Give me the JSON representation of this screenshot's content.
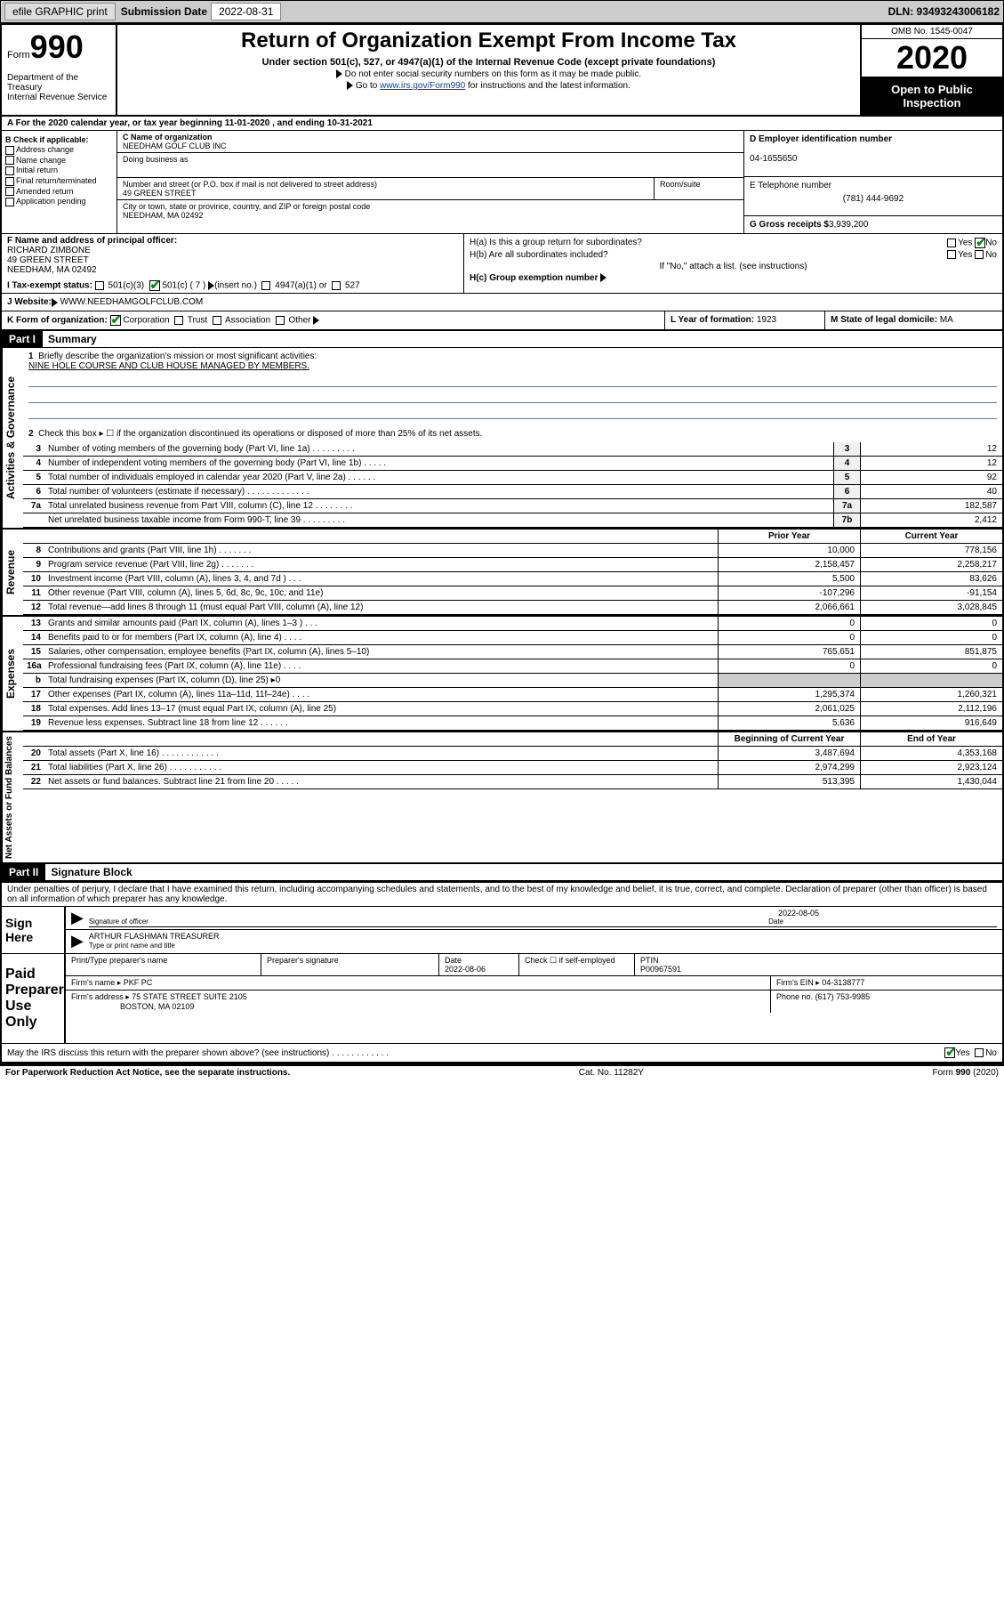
{
  "topbar": {
    "efile": "efile GRAPHIC print",
    "sub_label": "Submission Date",
    "sub_date": "2022-08-31",
    "dln": "DLN: 93493243006182"
  },
  "header": {
    "form_word": "Form",
    "form_num": "990",
    "dept": "Department of the Treasury\nInternal Revenue Service",
    "title": "Return of Organization Exempt From Income Tax",
    "sub": "Under section 501(c), 527, or 4947(a)(1) of the Internal Revenue Code (except private foundations)",
    "line1": "Do not enter social security numbers on this form as it may be made public.",
    "line2_a": "Go to ",
    "line2_link": "www.irs.gov/Form990",
    "line2_b": " for instructions and the latest information.",
    "omb": "OMB No. 1545-0047",
    "year": "2020",
    "inspect": "Open to Public Inspection"
  },
  "row_a": "A  For the 2020 calendar year, or tax year beginning 11-01-2020    , and ending 10-31-2021",
  "col_b": {
    "hdr": "B Check if applicable:",
    "items": [
      "Address change",
      "Name change",
      "Initial return",
      "Final return/terminated",
      "Amended return",
      "Application pending"
    ]
  },
  "col_c": {
    "name_lbl": "C Name of organization",
    "name": "NEEDHAM GOLF CLUB INC",
    "dba_lbl": "Doing business as",
    "addr_lbl": "Number and street (or P.O. box if mail is not delivered to street address)",
    "addr": "49 GREEN STREET",
    "room_lbl": "Room/suite",
    "city_lbl": "City or town, state or province, country, and ZIP or foreign postal code",
    "city": "NEEDHAM, MA  02492"
  },
  "col_d": {
    "ein_lbl": "D Employer identification number",
    "ein": "04-1655650",
    "tel_lbl": "E Telephone number",
    "tel": "(781) 444-9692",
    "gross_lbl": "G Gross receipts $",
    "gross": "3,939,200"
  },
  "row_f": {
    "lbl": "F  Name and address of principal officer:",
    "name": "RICHARD ZIMBONE",
    "addr1": "49 GREEN STREET",
    "addr2": "NEEDHAM, MA  02492"
  },
  "row_h": {
    "a": "H(a)  Is this a group return for subordinates?",
    "b": "H(b)  Are all subordinates included?",
    "note": "If \"No,\" attach a list. (see instructions)",
    "c": "H(c)  Group exemption number",
    "yes": "Yes",
    "no": "No"
  },
  "row_i": {
    "lbl": "I  Tax-exempt status:",
    "o1": "501(c)(3)",
    "o2": "501(c) ( 7 )",
    "o2_note": "(insert no.)",
    "o3": "4947(a)(1) or",
    "o4": "527"
  },
  "row_j": {
    "lbl": "J  Website:",
    "val": "WWW.NEEDHAMGOLFCLUB.COM"
  },
  "row_k": {
    "lbl": "K Form of organization:",
    "o1": "Corporation",
    "o2": "Trust",
    "o3": "Association",
    "o4": "Other"
  },
  "row_l": {
    "lbl": "L Year of formation:",
    "val": "1923"
  },
  "row_m": {
    "lbl": "M State of legal domicile:",
    "val": "MA"
  },
  "part1": {
    "hdr": "Part I",
    "title": "Summary",
    "q1_lbl": "1",
    "q1": "Briefly describe the organization's mission or most significant activities:",
    "q1_val": "NINE HOLE COURSE AND CLUB HOUSE MANAGED BY MEMBERS.",
    "q2_lbl": "2",
    "q2": "Check this box ▸ ☐  if the organization discontinued its operations or disposed of more than 25% of its net assets.",
    "lines_gov": [
      {
        "n": "3",
        "t": "Number of voting members of the governing body (Part VI, line 1a)  .    .    .    .    .    .    .    .    .",
        "b": "3",
        "v": "12"
      },
      {
        "n": "4",
        "t": "Number of independent voting members of the governing body (Part VI, line 1b)  .    .    .    .    .",
        "b": "4",
        "v": "12"
      },
      {
        "n": "5",
        "t": "Total number of individuals employed in calendar year 2020 (Part V, line 2a)  .    .    .    .    .    .",
        "b": "5",
        "v": "92"
      },
      {
        "n": "6",
        "t": "Total number of volunteers (estimate if necessary)  .    .    .    .    .    .    .    .    .    .    .    .    .",
        "b": "6",
        "v": "40"
      },
      {
        "n": "7a",
        "t": "Total unrelated business revenue from Part VIII, column (C), line 12  .    .    .    .    .    .    .    .",
        "b": "7a",
        "v": "182,587"
      },
      {
        "n": "",
        "t": "Net unrelated business taxable income from Form 990-T, line 39  .    .    .    .    .    .    .    .    .",
        "b": "7b",
        "v": "2,412"
      }
    ],
    "hdr_prior": "Prior Year",
    "hdr_current": "Current Year",
    "lines_rev": [
      {
        "n": "8",
        "t": "Contributions and grants (Part VIII, line 1h)  .    .    .    .    .    .    .",
        "p": "10,000",
        "c": "778,156"
      },
      {
        "n": "9",
        "t": "Program service revenue (Part VIII, line 2g)  .    .    .    .    .    .    .",
        "p": "2,158,457",
        "c": "2,258,217"
      },
      {
        "n": "10",
        "t": "Investment income (Part VIII, column (A), lines 3, 4, and 7d )  .    .    .",
        "p": "5,500",
        "c": "83,626"
      },
      {
        "n": "11",
        "t": "Other revenue (Part VIII, column (A), lines 5, 6d, 8c, 9c, 10c, and 11e)",
        "p": "-107,296",
        "c": "-91,154"
      },
      {
        "n": "12",
        "t": "Total revenue—add lines 8 through 11 (must equal Part VIII, column (A), line 12)",
        "p": "2,066,661",
        "c": "3,028,845"
      }
    ],
    "lines_exp": [
      {
        "n": "13",
        "t": "Grants and similar amounts paid (Part IX, column (A), lines 1–3 )  .    .    .",
        "p": "0",
        "c": "0"
      },
      {
        "n": "14",
        "t": "Benefits paid to or for members (Part IX, column (A), line 4)  .    .    .    .",
        "p": "0",
        "c": "0"
      },
      {
        "n": "15",
        "t": "Salaries, other compensation, employee benefits (Part IX, column (A), lines 5–10)",
        "p": "765,651",
        "c": "851,875"
      },
      {
        "n": "16a",
        "t": "Professional fundraising fees (Part IX, column (A), line 11e)  .    .    .    .",
        "p": "0",
        "c": "0"
      },
      {
        "n": "b",
        "t": "Total fundraising expenses (Part IX, column (D), line 25) ▸0",
        "p": "",
        "c": "",
        "shaded": true
      },
      {
        "n": "17",
        "t": "Other expenses (Part IX, column (A), lines 11a–11d, 11f–24e)  .    .    .    .",
        "p": "1,295,374",
        "c": "1,260,321"
      },
      {
        "n": "18",
        "t": "Total expenses. Add lines 13–17 (must equal Part IX, column (A), line 25)",
        "p": "2,061,025",
        "c": "2,112,196"
      },
      {
        "n": "19",
        "t": "Revenue less expenses. Subtract line 18 from line 12  .    .    .    .    .    .",
        "p": "5,636",
        "c": "916,649"
      }
    ],
    "hdr_beg": "Beginning of Current Year",
    "hdr_end": "End of Year",
    "lines_net": [
      {
        "n": "20",
        "t": "Total assets (Part X, line 16)  .    .    .    .    .    .    .    .    .    .    .    .",
        "p": "3,487,694",
        "c": "4,353,168"
      },
      {
        "n": "21",
        "t": "Total liabilities (Part X, line 26)  .    .    .    .    .    .    .    .    .    .    .",
        "p": "2,974,299",
        "c": "2,923,124"
      },
      {
        "n": "22",
        "t": "Net assets or fund balances. Subtract line 21 from line 20  .    .    .    .    .",
        "p": "513,395",
        "c": "1,430,044"
      }
    ],
    "vtab_gov": "Activities & Governance",
    "vtab_rev": "Revenue",
    "vtab_exp": "Expenses",
    "vtab_net": "Net Assets or Fund Balances"
  },
  "part2": {
    "hdr": "Part II",
    "title": "Signature Block",
    "decl": "Under penalties of perjury, I declare that I have examined this return, including accompanying schedules and statements, and to the best of my knowledge and belief, it is true, correct, and complete. Declaration of preparer (other than officer) is based on all information of which preparer has any knowledge."
  },
  "sign": {
    "here": "Sign Here",
    "sig_lbl": "Signature of officer",
    "date_lbl": "Date",
    "date": "2022-08-05",
    "name": "ARTHUR FLASHMAN  TREASURER",
    "name_lbl": "Type or print name and title"
  },
  "prep": {
    "hdr": "Paid Preparer Use Only",
    "name_lbl": "Print/Type preparer's name",
    "sig_lbl": "Preparer's signature",
    "date_lbl": "Date",
    "date": "2022-08-06",
    "check_lbl": "Check ☐ if self-employed",
    "ptin_lbl": "PTIN",
    "ptin": "P00967591",
    "firm_lbl": "Firm's name   ▸",
    "firm": "PKF PC",
    "ein_lbl": "Firm's EIN ▸",
    "ein": "04-3138777",
    "addr_lbl": "Firm's address ▸",
    "addr1": "75 STATE STREET SUITE 2105",
    "addr2": "BOSTON, MA  02109",
    "phone_lbl": "Phone no.",
    "phone": "(617) 753-9985",
    "discuss": "May the IRS discuss this return with the preparer shown above? (see instructions)  .    .    .    .    .    .    .    .    .    .    .    ."
  },
  "footer": {
    "left": "For Paperwork Reduction Act Notice, see the separate instructions.",
    "mid": "Cat. No. 11282Y",
    "right": "Form 990 (2020)"
  }
}
